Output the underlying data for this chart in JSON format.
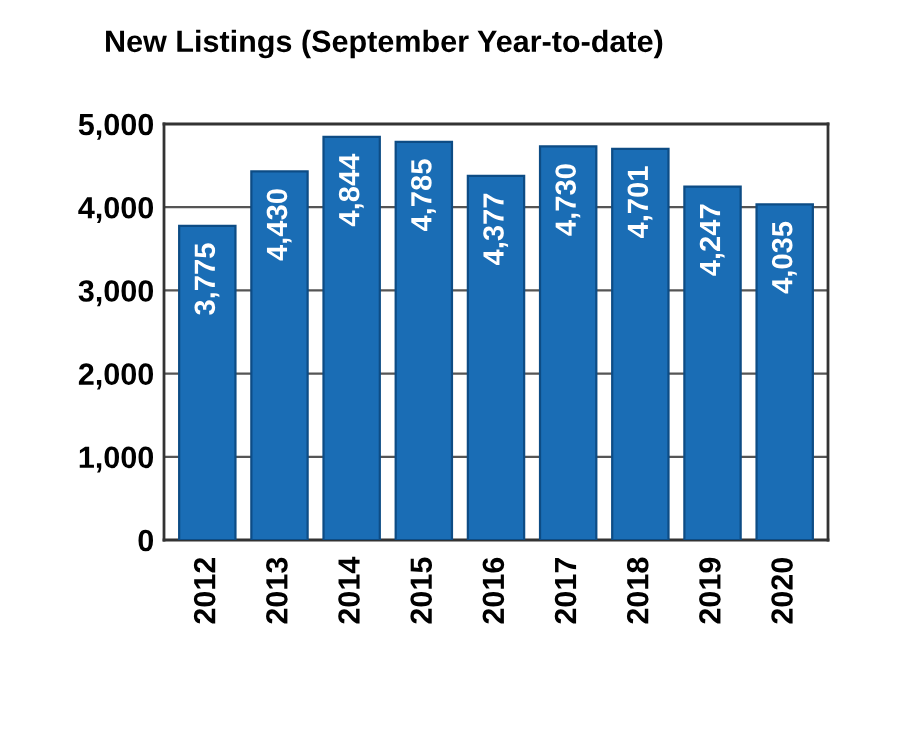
{
  "chart_data": {
    "type": "bar",
    "title": "New Listings (September Year-to-date)",
    "categories": [
      "2012",
      "2013",
      "2014",
      "2015",
      "2016",
      "2017",
      "2018",
      "2019",
      "2020"
    ],
    "values": [
      3775,
      4430,
      4844,
      4785,
      4377,
      4730,
      4701,
      4247,
      4035
    ],
    "value_labels": [
      "3,775",
      "4,430",
      "4,844",
      "4,785",
      "4,377",
      "4,730",
      "4,701",
      "4,247",
      "4,035"
    ],
    "color": "#1a6db5",
    "ylim": [
      0,
      5000
    ],
    "yticks": [
      {
        "value": 0,
        "label": "0"
      },
      {
        "value": 1000,
        "label": "1,000"
      },
      {
        "value": 2000,
        "label": "2,000"
      },
      {
        "value": 3000,
        "label": "3,000"
      },
      {
        "value": 4000,
        "label": "4,000"
      },
      {
        "value": 5000,
        "label": "5,000"
      }
    ],
    "grid": "y"
  }
}
